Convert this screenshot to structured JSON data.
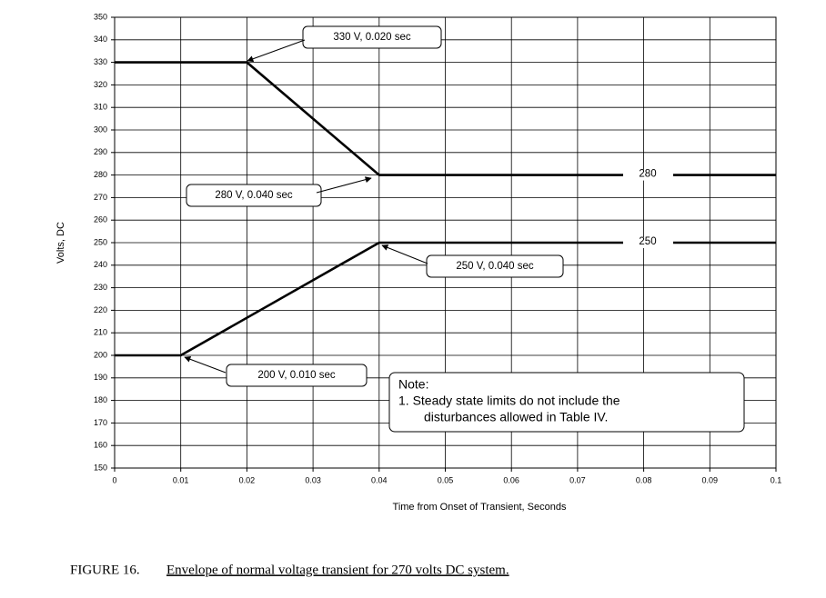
{
  "chart_data": {
    "type": "line",
    "y_label": "Volts, DC",
    "x_label": "Time from Onset of Transient, Seconds",
    "series": [
      {
        "name": "280",
        "color": "#000000",
        "x": [
          0,
          0.02,
          0.04,
          0.1
        ],
        "values": [
          330,
          330,
          280,
          280
        ]
      },
      {
        "name": "250",
        "color": "#000000",
        "x": [
          0,
          0.01,
          0.04,
          0.1
        ],
        "values": [
          200,
          200,
          250,
          250
        ]
      }
    ],
    "xlim": [
      0,
      0.1
    ],
    "xticks": [
      0,
      0.01,
      0.02,
      0.03,
      0.04,
      0.05,
      0.06,
      0.07,
      0.08,
      0.09,
      0.1
    ],
    "ylim": [
      150,
      350
    ],
    "yticks": [
      150,
      160,
      170,
      180,
      190,
      200,
      210,
      220,
      230,
      240,
      250,
      260,
      270,
      280,
      290,
      300,
      310,
      320,
      330,
      340,
      350
    ],
    "grid": true,
    "annotations": [
      "330 V, 0.020 sec",
      "280 V, 0.040 sec",
      "250 V, 0.040 sec",
      "200 V, 0.010 sec"
    ],
    "note": [
      "Note:",
      "1. Steady state limits do not include the",
      "disturbances allowed in Table IV."
    ],
    "caption": {
      "label": "FIGURE 16.",
      "text": "Envelope of normal voltage transient for 270 volts DC system."
    }
  }
}
